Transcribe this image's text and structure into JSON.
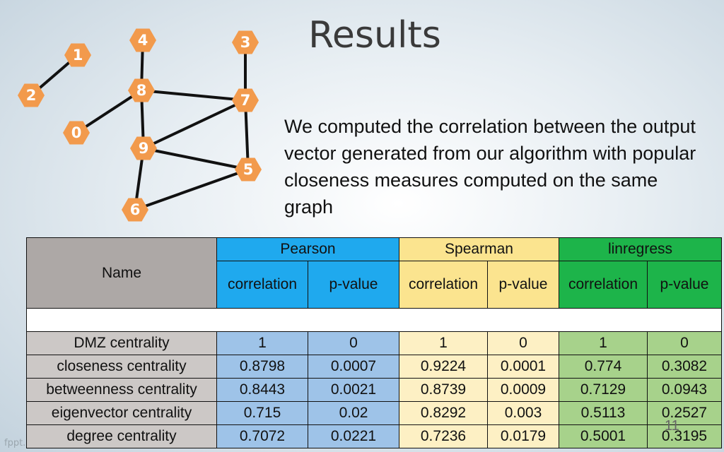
{
  "slide": {
    "title": "Results",
    "description": "We computed the correlation between the output vector generated from our algorithm with popular closeness measures computed on the same graph",
    "watermark": "fppt.com",
    "page_number": "11"
  },
  "graph": {
    "nodes": [
      "0",
      "1",
      "2",
      "3",
      "4",
      "5",
      "6",
      "7",
      "8",
      "9"
    ],
    "node_color": "#f29a4c",
    "edges": [
      [
        "1",
        "2"
      ],
      [
        "4",
        "8"
      ],
      [
        "3",
        "7"
      ],
      [
        "8",
        "7"
      ],
      [
        "8",
        "0"
      ],
      [
        "8",
        "9"
      ],
      [
        "9",
        "7"
      ],
      [
        "9",
        "5"
      ],
      [
        "7",
        "5"
      ],
      [
        "5",
        "6"
      ],
      [
        "9",
        "6"
      ]
    ]
  },
  "table": {
    "name_header": "Name",
    "groups": [
      "Pearson",
      "Spearman",
      "linregress"
    ],
    "subheaders": [
      "correlation",
      "p-value",
      "correlation",
      "p-value",
      "correlation",
      "p-value"
    ],
    "rows": [
      {
        "name": "DMZ centrality",
        "values": [
          "1",
          "0",
          "1",
          "0",
          "1",
          "0"
        ]
      },
      {
        "name": "closeness centrality",
        "values": [
          "0.8798",
          "0.0007",
          "0.9224",
          "0.0001",
          "0.774",
          "0.3082"
        ]
      },
      {
        "name": "betweenness centrality",
        "values": [
          "0.8443",
          "0.0021",
          "0.8739",
          "0.0009",
          "0.7129",
          "0.0943"
        ]
      },
      {
        "name": "eigenvector centrality",
        "values": [
          "0.715",
          "0.02",
          "0.8292",
          "0.003",
          "0.5113",
          "0.2527"
        ]
      },
      {
        "name": "degree centrality",
        "values": [
          "0.7072",
          "0.0221",
          "0.7236",
          "0.0179",
          "0.5001",
          "0.3195"
        ]
      }
    ],
    "colors": {
      "pearson": "#1fa9ee",
      "spearman": "#fbe48f",
      "linregress": "#1db44a"
    }
  }
}
